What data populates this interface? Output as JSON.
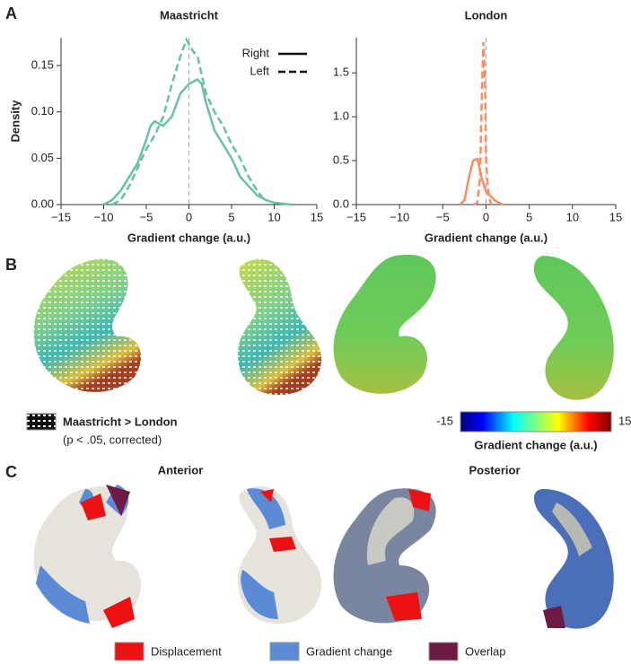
{
  "chart_data": [
    {
      "type": "line",
      "title": "Maastricht",
      "xlabel": "Gradient change (a.u.)",
      "ylabel": "Density",
      "xlim": [
        -15,
        15
      ],
      "ylim": [
        0,
        0.18
      ],
      "xticks": [
        {
          "value": -15,
          "label": "−15"
        },
        {
          "value": -10,
          "label": "−10"
        },
        {
          "value": -5,
          "label": "−5"
        },
        0,
        5,
        10,
        15
      ],
      "yticks": [
        {
          "value": 0,
          "label": "0.00"
        },
        0.05,
        {
          "value": 0.1,
          "label": "0.10"
        },
        0.15
      ],
      "vline": 0,
      "legend": true,
      "legend_loc": "upper right",
      "series": [
        {
          "name": "Right",
          "color": "#66c2a5",
          "linestyle": "solid",
          "x": [
            -10,
            -9,
            -8,
            -7,
            -6,
            -5,
            -4.5,
            -4,
            -3.5,
            -3,
            -2,
            -1,
            0,
            1,
            1.5,
            2,
            3,
            4,
            5,
            6,
            7,
            8,
            9,
            10,
            12
          ],
          "values": [
            0,
            0.005,
            0.015,
            0.03,
            0.045,
            0.07,
            0.085,
            0.09,
            0.087,
            0.085,
            0.095,
            0.12,
            0.13,
            0.135,
            0.13,
            0.11,
            0.08,
            0.065,
            0.05,
            0.03,
            0.02,
            0.01,
            0.005,
            0.002,
            0
          ]
        },
        {
          "name": "Left",
          "color": "#66c2a5",
          "linestyle": "dashed",
          "x": [
            -9,
            -8,
            -7,
            -6,
            -5,
            -4,
            -3,
            -2,
            -1,
            -0.3,
            0.5,
            1,
            2,
            3,
            4,
            5,
            6,
            7,
            8,
            9
          ],
          "values": [
            0,
            0.005,
            0.02,
            0.04,
            0.06,
            0.075,
            0.095,
            0.13,
            0.16,
            0.178,
            0.165,
            0.16,
            0.12,
            0.1,
            0.085,
            0.065,
            0.05,
            0.03,
            0.015,
            0.003
          ]
        }
      ]
    },
    {
      "type": "line",
      "title": "London",
      "xlabel": "Gradient change (a.u.)",
      "xlim": [
        -15,
        15
      ],
      "ylim": [
        0,
        1.9
      ],
      "xticks": [
        {
          "value": -15,
          "label": "−15"
        },
        {
          "value": -10,
          "label": "−10"
        },
        {
          "value": -5,
          "label": "−5"
        },
        0,
        5,
        10,
        15
      ],
      "yticks": [
        {
          "value": 0,
          "label": "0.0"
        },
        0.5,
        {
          "value": 1,
          "label": "1.0"
        },
        1.5
      ],
      "vline": 0,
      "legend": false,
      "series": [
        {
          "name": "Right",
          "color": "#fc8d62",
          "linestyle": "solid",
          "x": [
            -3,
            -2.5,
            -2,
            -1.5,
            -1,
            -0.5,
            0,
            0.5,
            1,
            1.5,
            2
          ],
          "values": [
            0,
            0.05,
            0.3,
            0.5,
            0.52,
            0.3,
            0.15,
            0.1,
            0.05,
            0.02,
            0
          ]
        },
        {
          "name": "Left",
          "color": "#fc8d62",
          "linestyle": "dashed",
          "x": [
            -1.5,
            -1,
            -0.7,
            -0.5,
            -0.3,
            -0.1,
            0,
            0.3,
            0.6
          ],
          "values": [
            0,
            0.02,
            0.3,
            1.2,
            1.85,
            1.3,
            0.5,
            0.1,
            0
          ]
        }
      ]
    }
  ],
  "panels": {
    "a": "A",
    "b": "B",
    "c": "C"
  },
  "panel_b": {
    "pattern_legend": "Maastricht > London",
    "pattern_note": "(p < .05, corrected)",
    "colorbar": {
      "label": "Gradient change (a.u.)",
      "lim": [
        -15,
        15
      ],
      "ticks": [
        {
          "value": -15,
          "label": "-15"
        },
        15
      ]
    }
  },
  "panel_c": {
    "views": [
      "Anterior",
      "Posterior"
    ],
    "legend": [
      {
        "name": "Displacement",
        "color": "#ee1111"
      },
      {
        "name": "Gradient change",
        "color": "#5b8ad6"
      },
      {
        "name": "Overlap",
        "color": "#6e1a45"
      }
    ]
  }
}
